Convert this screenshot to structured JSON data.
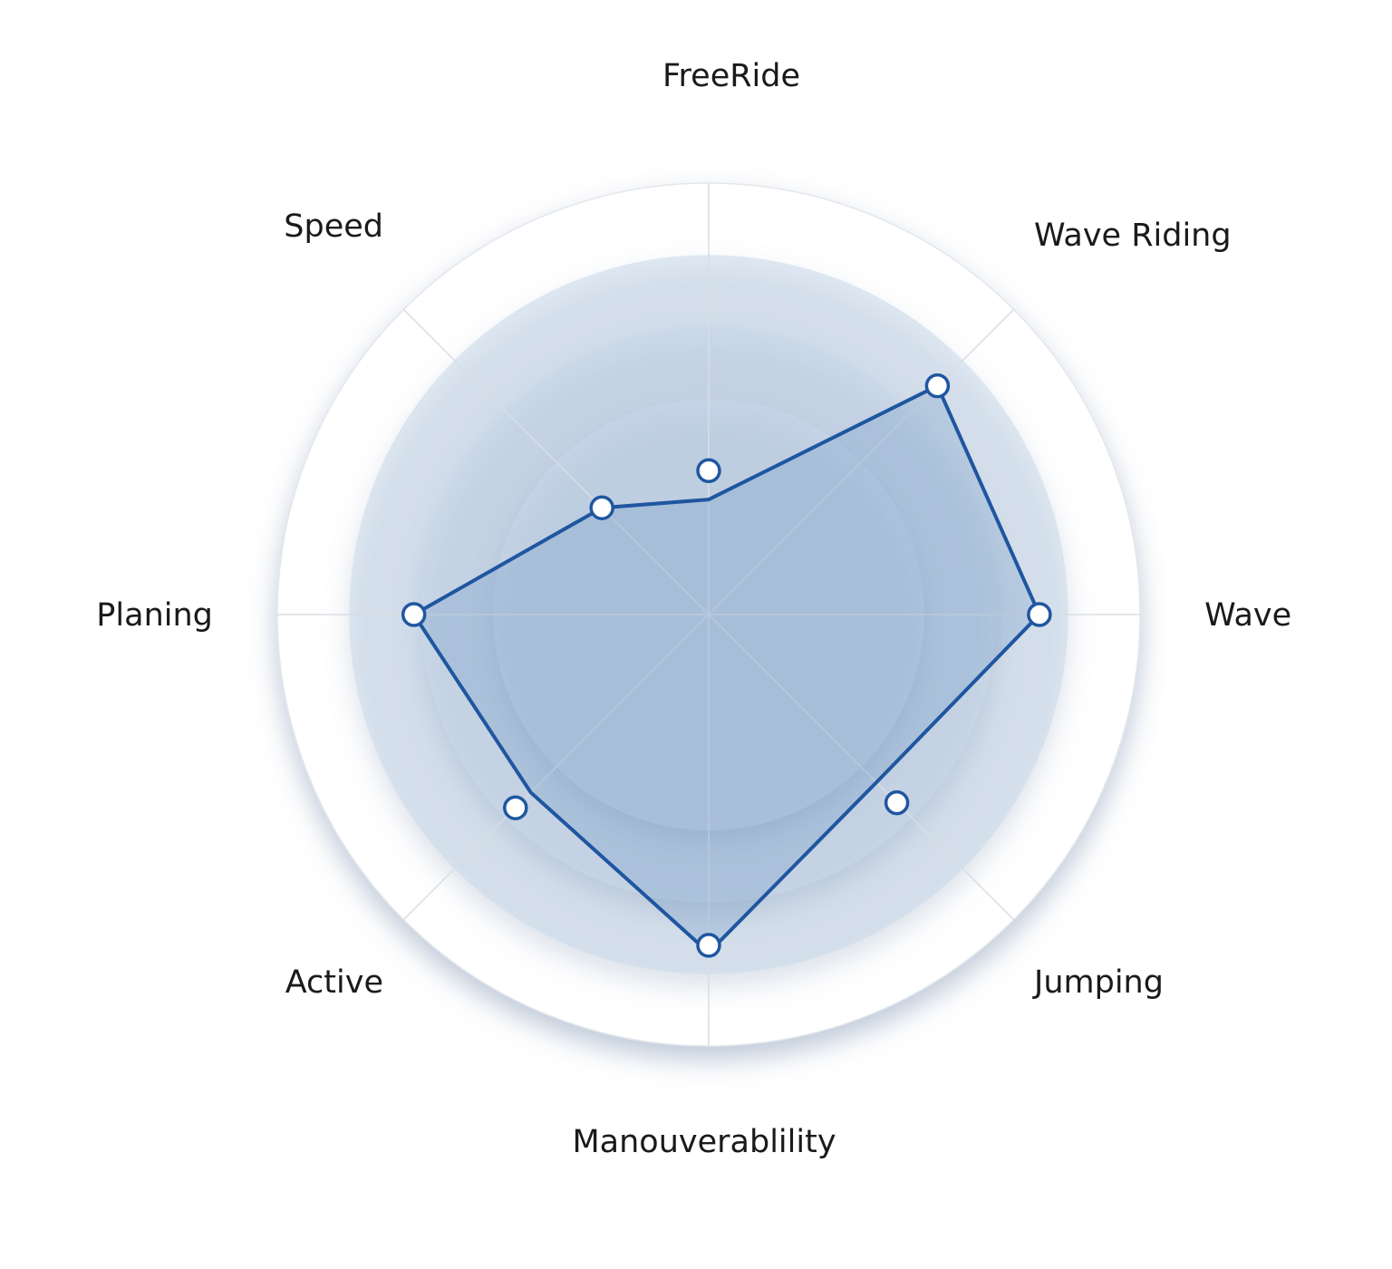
{
  "chart_data": {
    "type": "radar",
    "axes": [
      "FreeRide",
      "Wave Riding",
      "Wave",
      "Jumping",
      "Manouverablility",
      "Active",
      "Planing",
      "Speed"
    ],
    "series": [
      {
        "values": [
          1.6,
          4.5,
          4.6,
          3.3,
          4.7,
          3.5,
          4.1,
          2.1
        ]
      }
    ],
    "markers": [
      2.0,
      4.5,
      4.6,
      3.7,
      4.6,
      3.8,
      4.1,
      2.1
    ],
    "rlim": [
      0,
      6
    ],
    "rings": [
      3,
      4,
      5,
      6
    ],
    "grid": true,
    "colors": {
      "line": "#1f56a0",
      "fill": "#6d96c7",
      "ring": "#c7d7ea",
      "ring_shadow": "#7f98ba"
    }
  }
}
